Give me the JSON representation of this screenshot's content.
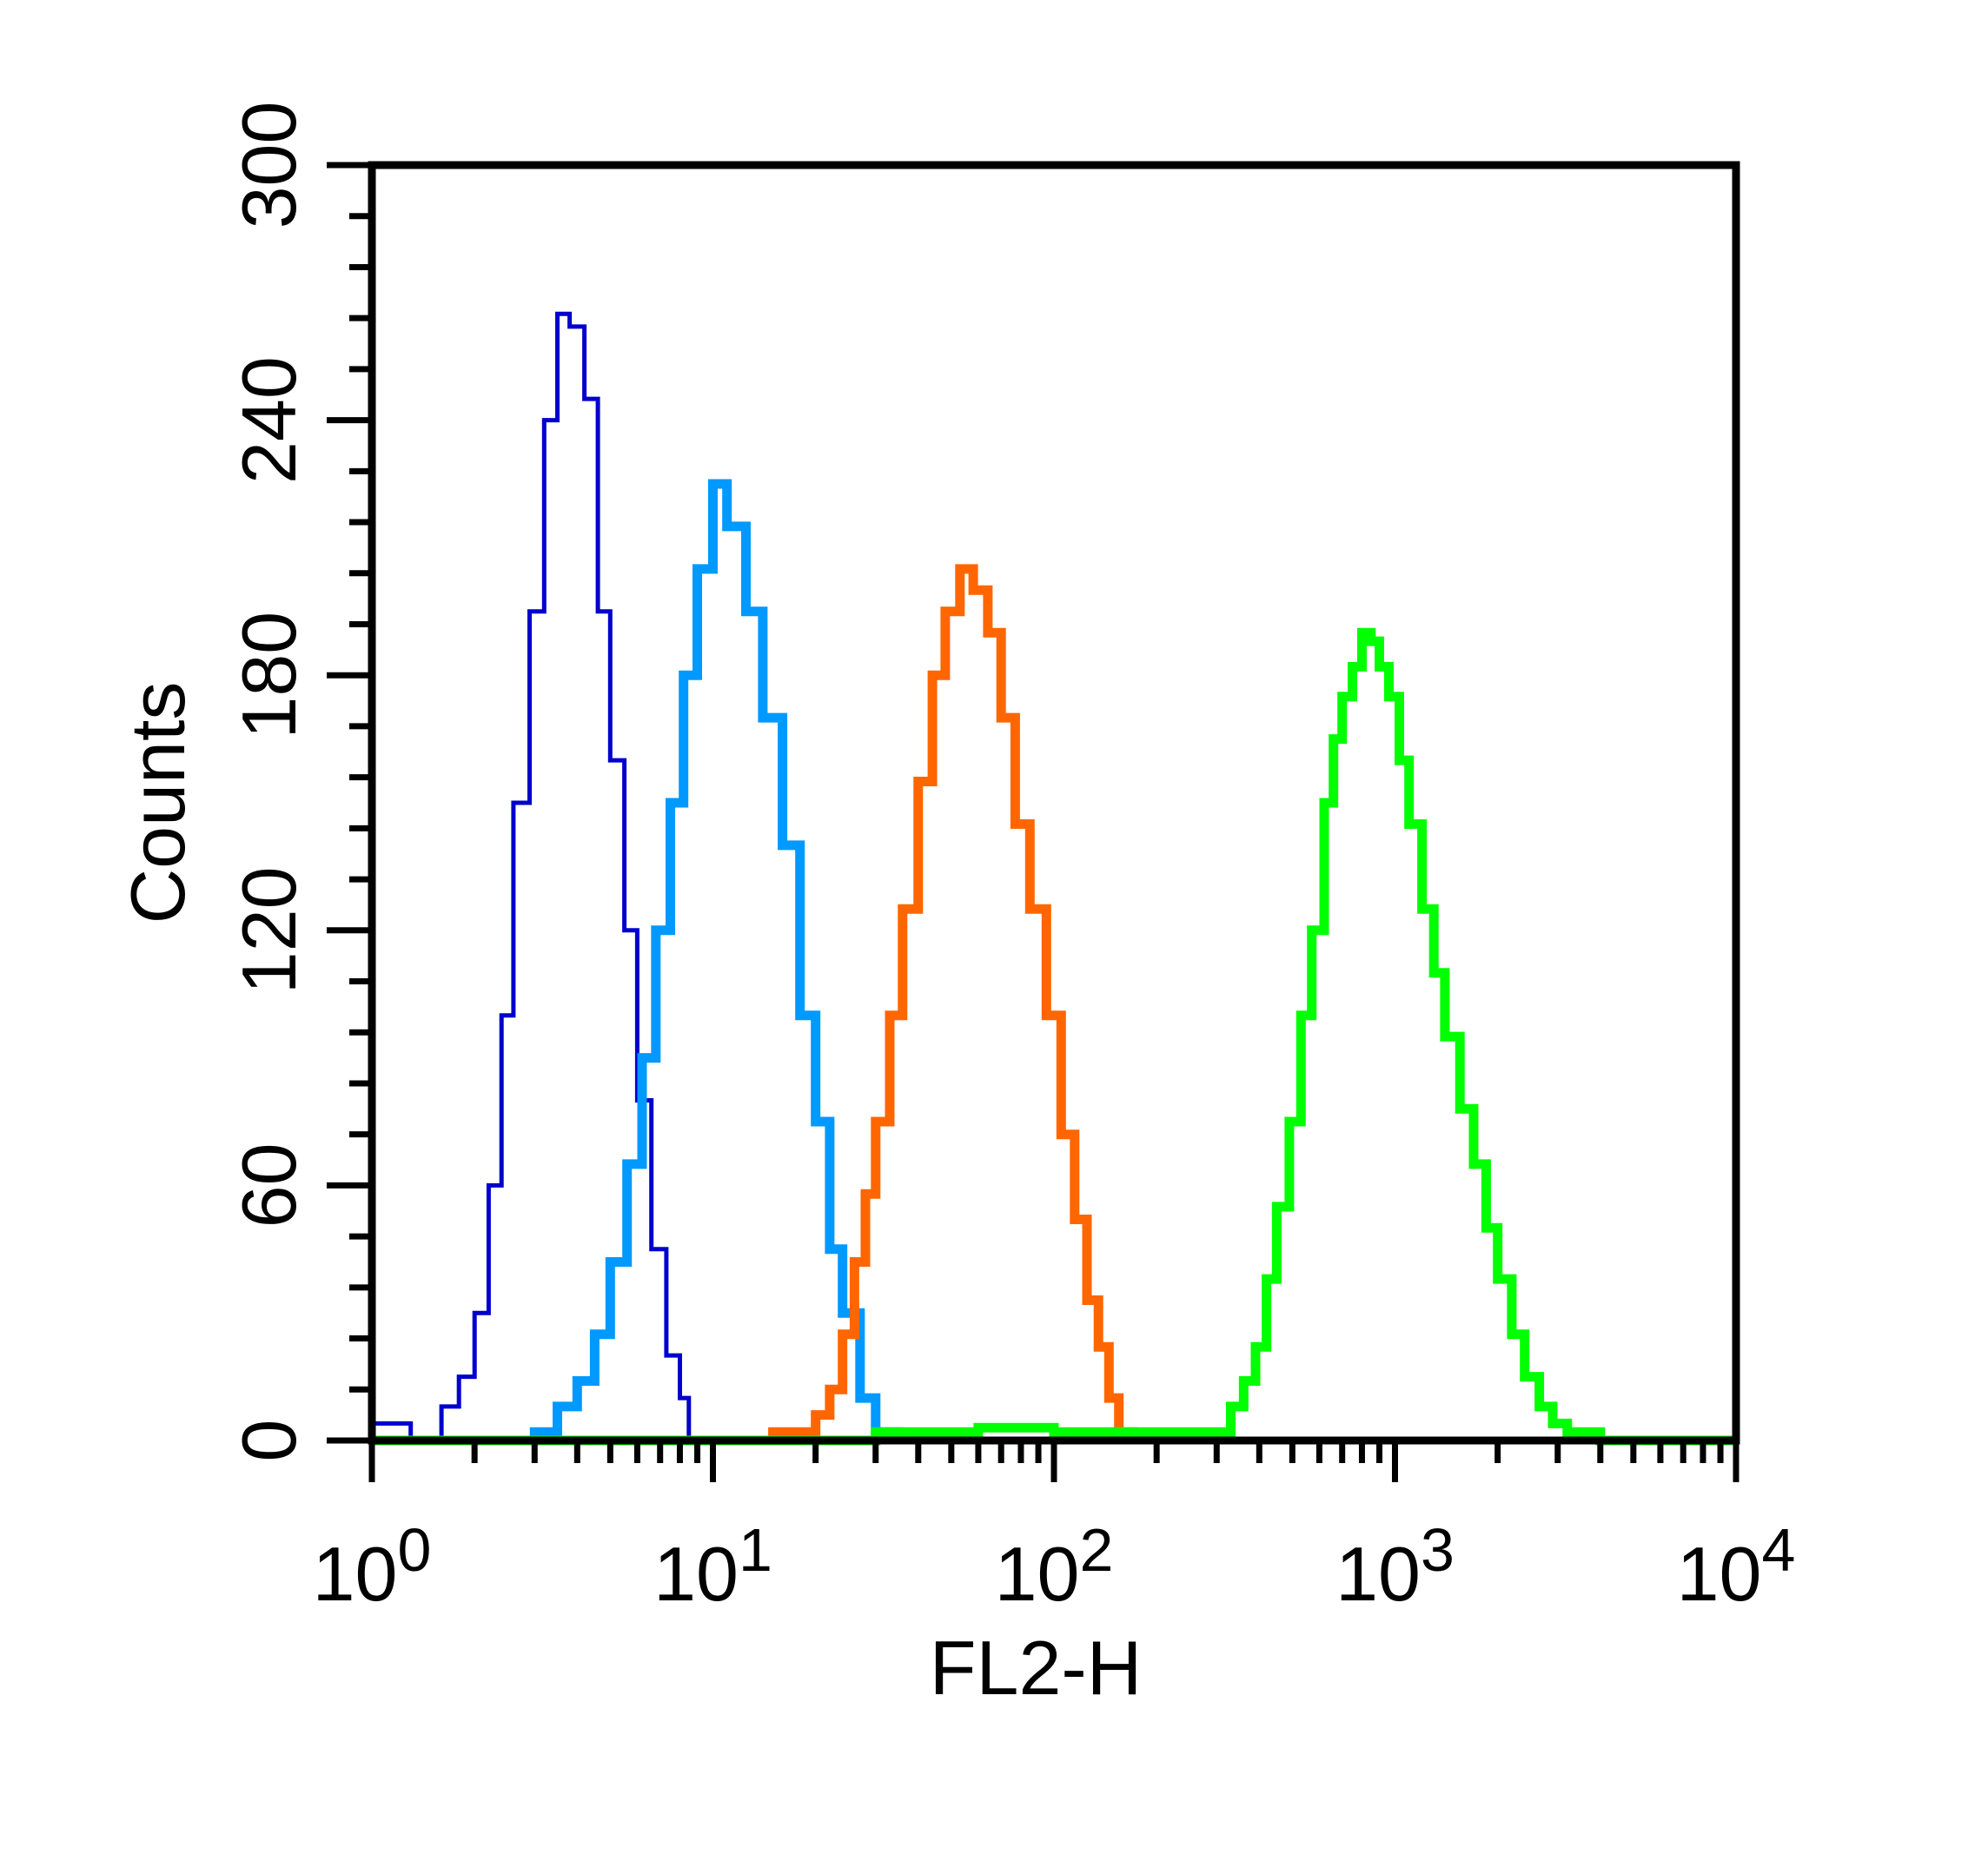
{
  "chart_data": {
    "type": "histogram",
    "xlabel": "FL2-H",
    "ylabel": "Counts",
    "xscale": "log",
    "xlim": [
      1,
      10000
    ],
    "ylim": [
      0,
      300
    ],
    "x_ticks": [
      {
        "value": 1,
        "base": "10",
        "exp": "0"
      },
      {
        "value": 10,
        "base": "10",
        "exp": "1"
      },
      {
        "value": 100,
        "base": "10",
        "exp": "2"
      },
      {
        "value": 1000,
        "base": "10",
        "exp": "3"
      },
      {
        "value": 10000,
        "base": "10",
        "exp": "4"
      }
    ],
    "y_ticks": [
      "0",
      "60",
      "120",
      "180",
      "240",
      "300"
    ],
    "grid": false,
    "legend": "none",
    "series": [
      {
        "color": "#0000cc",
        "points": [
          [
            1.0,
            4
          ],
          [
            1.3,
            0
          ],
          [
            1.6,
            8
          ],
          [
            1.8,
            15
          ],
          [
            2.0,
            30
          ],
          [
            2.2,
            60
          ],
          [
            2.4,
            100
          ],
          [
            2.6,
            150
          ],
          [
            2.9,
            195
          ],
          [
            3.2,
            240
          ],
          [
            3.5,
            265
          ],
          [
            3.8,
            262
          ],
          [
            4.2,
            245
          ],
          [
            4.6,
            195
          ],
          [
            5.0,
            160
          ],
          [
            5.5,
            120
          ],
          [
            6.0,
            80
          ],
          [
            6.6,
            45
          ],
          [
            7.3,
            20
          ],
          [
            8.0,
            10
          ],
          [
            8.5,
            0
          ]
        ]
      },
      {
        "color": "#0099ff",
        "points": [
          [
            2.0,
            0
          ],
          [
            3.0,
            2
          ],
          [
            3.5,
            8
          ],
          [
            4.0,
            14
          ],
          [
            4.5,
            25
          ],
          [
            5.0,
            42
          ],
          [
            5.6,
            65
          ],
          [
            6.2,
            90
          ],
          [
            6.8,
            120
          ],
          [
            7.5,
            150
          ],
          [
            8.2,
            180
          ],
          [
            9.0,
            205
          ],
          [
            10.0,
            225
          ],
          [
            11.0,
            215
          ],
          [
            12.5,
            195
          ],
          [
            14.0,
            170
          ],
          [
            16.0,
            140
          ],
          [
            18.0,
            100
          ],
          [
            20.0,
            75
          ],
          [
            22.0,
            45
          ],
          [
            24.0,
            30
          ],
          [
            27.0,
            10
          ],
          [
            30.0,
            2
          ],
          [
            35.0,
            0
          ]
        ]
      },
      {
        "color": "#ff6600",
        "points": [
          [
            10.0,
            0
          ],
          [
            15.0,
            2
          ],
          [
            20.0,
            6
          ],
          [
            22.0,
            12
          ],
          [
            24.0,
            25
          ],
          [
            26.0,
            42
          ],
          [
            28.0,
            58
          ],
          [
            30.0,
            75
          ],
          [
            33.0,
            100
          ],
          [
            36.0,
            125
          ],
          [
            40.0,
            155
          ],
          [
            44.0,
            180
          ],
          [
            48.0,
            195
          ],
          [
            53.0,
            205
          ],
          [
            58.0,
            200
          ],
          [
            64.0,
            190
          ],
          [
            70.0,
            170
          ],
          [
            77.0,
            145
          ],
          [
            85.0,
            125
          ],
          [
            95.0,
            100
          ],
          [
            105.0,
            72
          ],
          [
            115.0,
            52
          ],
          [
            125.0,
            33
          ],
          [
            135.0,
            22
          ],
          [
            145.0,
            10
          ],
          [
            155.0,
            2
          ],
          [
            170.0,
            0
          ]
        ]
      },
      {
        "color": "#00ff00",
        "points": [
          [
            1.0,
            0
          ],
          [
            15.0,
            0
          ],
          [
            30.0,
            2
          ],
          [
            60.0,
            3
          ],
          [
            100.0,
            2
          ],
          [
            300.0,
            2
          ],
          [
            330.0,
            8
          ],
          [
            360.0,
            14
          ],
          [
            390.0,
            22
          ],
          [
            420.0,
            38
          ],
          [
            450.0,
            55
          ],
          [
            490.0,
            75
          ],
          [
            530.0,
            100
          ],
          [
            570.0,
            120
          ],
          [
            620.0,
            150
          ],
          [
            660.0,
            165
          ],
          [
            700.0,
            175
          ],
          [
            750.0,
            182
          ],
          [
            800.0,
            190
          ],
          [
            850.0,
            188
          ],
          [
            900.0,
            182
          ],
          [
            960.0,
            175
          ],
          [
            1030.0,
            160
          ],
          [
            1100.0,
            145
          ],
          [
            1200.0,
            125
          ],
          [
            1300.0,
            110
          ],
          [
            1400.0,
            95
          ],
          [
            1550.0,
            78
          ],
          [
            1700.0,
            65
          ],
          [
            1850.0,
            50
          ],
          [
            2000.0,
            38
          ],
          [
            2200.0,
            25
          ],
          [
            2400.0,
            15
          ],
          [
            2650.0,
            8
          ],
          [
            2900.0,
            4
          ],
          [
            3200.0,
            2
          ],
          [
            4000.0,
            0
          ],
          [
            10000.0,
            0
          ]
        ]
      }
    ]
  }
}
